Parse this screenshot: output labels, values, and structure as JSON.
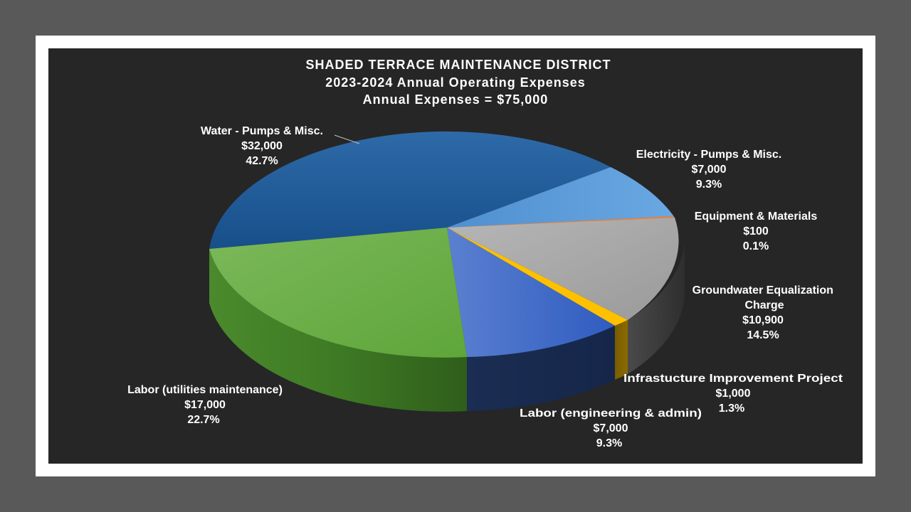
{
  "chart_data": {
    "type": "pie",
    "title": [
      "SHADED TERRACE MAINTENANCE DISTRICT",
      "2023-2024 Annual Operating Expenses",
      "Annual Expenses = $75,000"
    ],
    "slices": [
      {
        "name": "Water - Pumps & Misc.",
        "value": 32000,
        "value_label": "$32,000",
        "percent_label": "42.7%",
        "color": "#1f5a96"
      },
      {
        "name": "Electricity - Pumps & Misc.",
        "value": 7000,
        "value_label": "$7,000",
        "percent_label": "9.3%",
        "color": "#5b9bd5"
      },
      {
        "name": "Equipment & Materials",
        "value": 100,
        "value_label": "$100",
        "percent_label": "0.1%",
        "color": "#ed7d31"
      },
      {
        "name": "Groundwater Equalization Charge",
        "value": 10900,
        "value_label": "$10,900",
        "percent_label": "14.5%",
        "color": "#a5a5a5"
      },
      {
        "name": "Infrastucture Improvement Project",
        "value": 1000,
        "value_label": "$1,000",
        "percent_label": "1.3%",
        "color": "#ffc000"
      },
      {
        "name": "Labor (engineering & admin)",
        "value": 7000,
        "value_label": "$7,000",
        "percent_label": "9.3%",
        "color": "#4472c4"
      },
      {
        "name": "Labor (utilities maintenance)",
        "value": 17000,
        "value_label": "$17,000",
        "percent_label": "22.7%",
        "color": "#70ad47"
      }
    ]
  }
}
